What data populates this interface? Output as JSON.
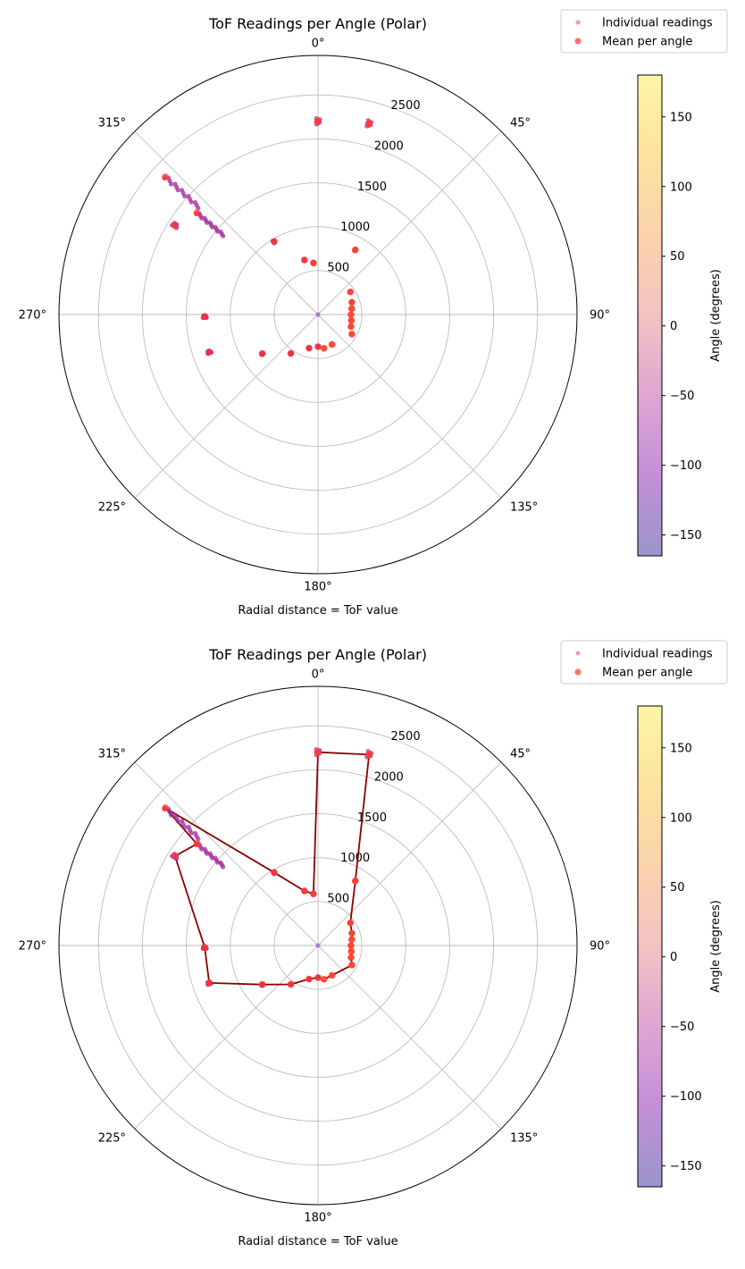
{
  "chart_data": [
    {
      "type": "scatter",
      "projection": "polar",
      "theta_zero": "N",
      "theta_direction": "clockwise",
      "title": "ToF Readings per Angle (Polar)",
      "xlabel": "Radial distance = ToF value",
      "angle_tick_labels": [
        "0°",
        "45°",
        "90°",
        "135°",
        "180°",
        "225°",
        "270°",
        "315°"
      ],
      "radial_ticks": [
        500,
        1000,
        1500,
        2000,
        2500
      ],
      "radial_tick_labels": [
        "500",
        "1000",
        "1500",
        "2000",
        "2500"
      ],
      "rlim": [
        0,
        2950
      ],
      "grid": true,
      "legend": {
        "placement": "top-right",
        "entries": [
          "Individual readings",
          "Mean per angle"
        ]
      },
      "colorbar": {
        "label": "Angle (degrees)",
        "range": [
          -165,
          180
        ],
        "ticks": [
          150,
          100,
          50,
          0,
          -50,
          -100,
          -150
        ],
        "tick_labels": [
          "150",
          "100",
          "50",
          "0",
          "−50",
          "−100",
          "−150"
        ]
      },
      "connect_means": false,
      "series": [
        {
          "name": "Individual readings",
          "points": [
            [
              0,
              2200
            ],
            [
              15,
              2250
            ],
            [
              30,
              850
            ],
            [
              55,
              450
            ],
            [
              70,
              410
            ],
            [
              80,
              390
            ],
            [
              90,
              375
            ],
            [
              100,
              385
            ],
            [
              110,
              400
            ],
            [
              120,
              445
            ],
            [
              155,
              375
            ],
            [
              170,
              390
            ],
            [
              180,
              365
            ],
            [
              195,
              395
            ],
            [
              215,
              540
            ],
            [
              235,
              775
            ],
            [
              251,
              1310
            ],
            [
              269,
              1290
            ],
            [
              302,
              1920
            ],
            [
              310,
              1800
            ],
            [
              312,
              2340
            ],
            [
              329,
              970
            ],
            [
              346,
              640
            ],
            [
              355,
              590
            ]
          ],
          "spread": [
            0,
            0,
            0,
            0,
            0,
            0,
            0,
            0,
            0,
            0,
            0,
            0,
            0,
            0,
            0,
            0,
            0,
            0,
            0,
            0.92,
            0.95,
            0,
            0,
            0
          ]
        },
        {
          "name": "Mean per angle",
          "points": [
            [
              0,
              2200
            ],
            [
              15,
              2250
            ],
            [
              30,
              850
            ],
            [
              55,
              450
            ],
            [
              70,
              410
            ],
            [
              80,
              390
            ],
            [
              90,
              375
            ],
            [
              100,
              385
            ],
            [
              110,
              400
            ],
            [
              120,
              445
            ],
            [
              155,
              375
            ],
            [
              170,
              390
            ],
            [
              180,
              365
            ],
            [
              195,
              395
            ],
            [
              215,
              540
            ],
            [
              235,
              775
            ],
            [
              251,
              1310
            ],
            [
              269,
              1290
            ],
            [
              302,
              1920
            ],
            [
              310,
              1800
            ],
            [
              312,
              2340
            ],
            [
              329,
              970
            ],
            [
              346,
              640
            ],
            [
              355,
              590
            ]
          ]
        }
      ]
    },
    {
      "type": "scatter",
      "projection": "polar",
      "theta_zero": "N",
      "theta_direction": "clockwise",
      "title": "ToF Readings per Angle (Polar)",
      "xlabel": "Radial distance = ToF value",
      "angle_tick_labels": [
        "0°",
        "45°",
        "90°",
        "135°",
        "180°",
        "225°",
        "270°",
        "315°"
      ],
      "radial_ticks": [
        500,
        1000,
        1500,
        2000,
        2500
      ],
      "radial_tick_labels": [
        "500",
        "1000",
        "1500",
        "2000",
        "2500"
      ],
      "rlim": [
        0,
        2950
      ],
      "grid": true,
      "legend": {
        "placement": "top-right",
        "entries": [
          "Individual readings",
          "Mean per angle"
        ]
      },
      "colorbar": {
        "label": "Angle (degrees)",
        "range": [
          -165,
          180
        ],
        "ticks": [
          150,
          100,
          50,
          0,
          -50,
          -100,
          -150
        ],
        "tick_labels": [
          "150",
          "100",
          "50",
          "0",
          "−50",
          "−100",
          "−150"
        ]
      },
      "connect_means": true,
      "series": [
        {
          "name": "Individual readings",
          "points": [
            [
              0,
              2200
            ],
            [
              15,
              2250
            ],
            [
              30,
              850
            ],
            [
              55,
              450
            ],
            [
              70,
              410
            ],
            [
              80,
              390
            ],
            [
              90,
              375
            ],
            [
              100,
              385
            ],
            [
              110,
              400
            ],
            [
              120,
              445
            ],
            [
              155,
              375
            ],
            [
              170,
              390
            ],
            [
              180,
              365
            ],
            [
              195,
              395
            ],
            [
              215,
              540
            ],
            [
              235,
              775
            ],
            [
              251,
              1310
            ],
            [
              269,
              1290
            ],
            [
              302,
              1920
            ],
            [
              310,
              1800
            ],
            [
              312,
              2340
            ],
            [
              329,
              970
            ],
            [
              346,
              640
            ],
            [
              355,
              590
            ]
          ],
          "spread": [
            0,
            0,
            0,
            0,
            0,
            0,
            0,
            0,
            0,
            0,
            0,
            0,
            0,
            0,
            0,
            0,
            0,
            0,
            0,
            0.92,
            0.95,
            0,
            0,
            0
          ]
        },
        {
          "name": "Mean per angle",
          "points": [
            [
              0,
              2200
            ],
            [
              15,
              2250
            ],
            [
              30,
              850
            ],
            [
              55,
              450
            ],
            [
              70,
              410
            ],
            [
              80,
              390
            ],
            [
              90,
              375
            ],
            [
              100,
              385
            ],
            [
              110,
              400
            ],
            [
              120,
              445
            ],
            [
              155,
              375
            ],
            [
              170,
              390
            ],
            [
              180,
              365
            ],
            [
              195,
              395
            ],
            [
              215,
              540
            ],
            [
              235,
              775
            ],
            [
              251,
              1310
            ],
            [
              269,
              1290
            ],
            [
              302,
              1920
            ],
            [
              310,
              1800
            ],
            [
              312,
              2340
            ],
            [
              329,
              970
            ],
            [
              346,
              640
            ],
            [
              355,
              590
            ]
          ]
        }
      ]
    }
  ],
  "colors": {
    "mean_marker": "#ff3b30",
    "mean_line": "#8b0000",
    "grid": "#bdbdbd",
    "spine": "#000000",
    "colormap": [
      "#9a94cc",
      "#c48fd8",
      "#e1a6d2",
      "#f2c3c3",
      "#fbd3ad",
      "#fde49e",
      "#fdf5a6"
    ],
    "reading_scale": [
      "#6a00a8",
      "#7e03a8",
      "#a12a9a",
      "#c33d80",
      "#e16462",
      "#f58c40",
      "#fca636"
    ]
  }
}
